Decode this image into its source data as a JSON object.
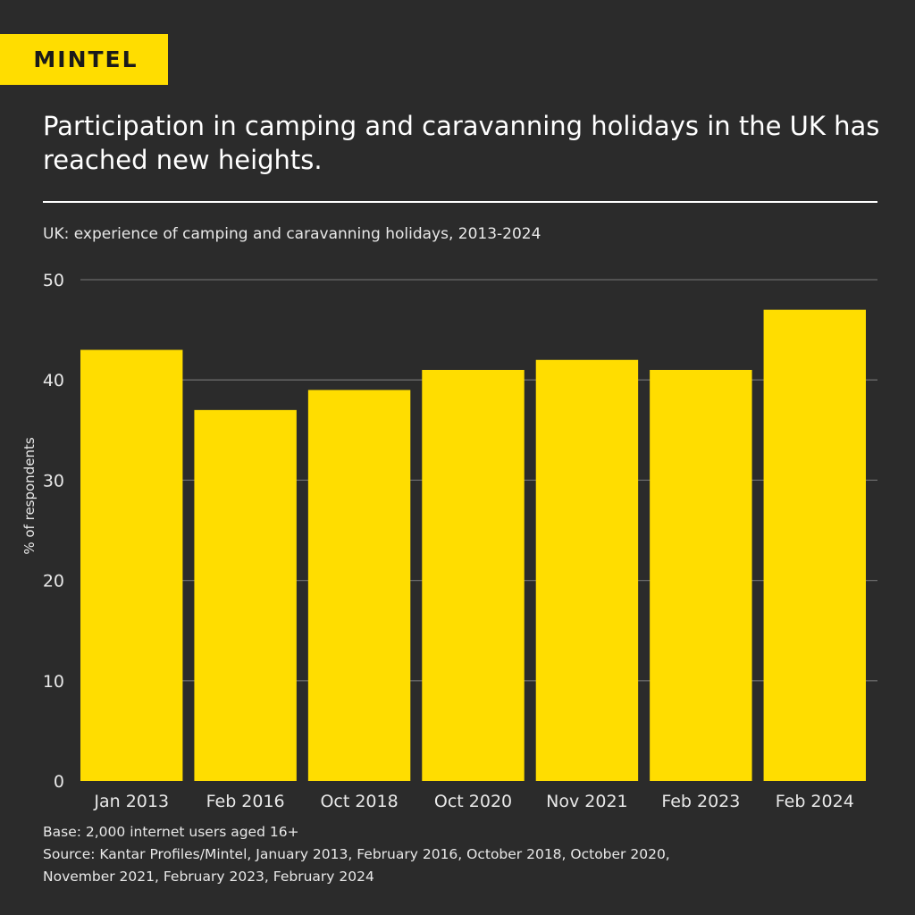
{
  "logo": "MINTEL",
  "title": "Participation in camping and caravanning holidays in the UK has reached new heights.",
  "subtitle": "UK: experience of camping and caravanning holidays, 2013-2024",
  "colors": {
    "background": "#2b2b2b",
    "bar": "#FFDD00",
    "text": "#ffffff"
  },
  "chart_data": {
    "type": "bar",
    "categories": [
      "Jan 2013",
      "Feb 2016",
      "Oct 2018",
      "Oct 2020",
      "Nov 2021",
      "Feb 2023",
      "Feb 2024"
    ],
    "values": [
      43,
      37,
      39,
      41,
      42,
      41,
      47
    ],
    "ylabel": "% of respondents",
    "xlabel": "",
    "ylim": [
      0,
      50
    ],
    "yticks": [
      0,
      10,
      20,
      30,
      40,
      50
    ],
    "grid": true
  },
  "footer": {
    "base": "Base: 2,000 internet users aged 16+",
    "source_line1": "Source: Kantar Profiles/Mintel, January 2013, February 2016, October 2018, October 2020,",
    "source_line2": "November 2021, February 2023, February 2024"
  }
}
